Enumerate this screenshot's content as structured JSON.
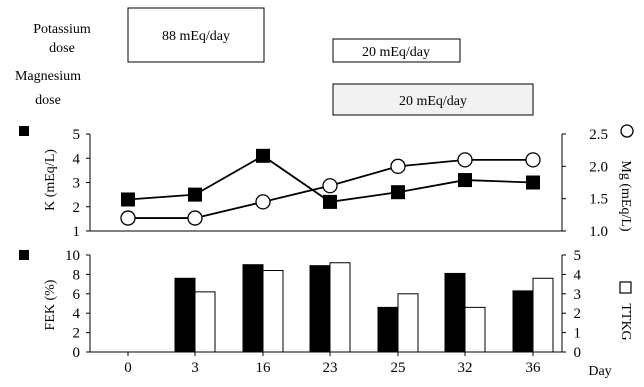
{
  "header": {
    "potassium_label_line1": "Potassium",
    "potassium_label_line2": "dose",
    "magnesium_label_line1": "Magnesium",
    "magnesium_label_line2": "dose",
    "dose_boxes": [
      {
        "label": "88 mEq/day",
        "fill": "#ffffff"
      },
      {
        "label": "20 mEq/day",
        "fill": "#ffffff"
      },
      {
        "label": "20 mEq/day",
        "fill": "#f2f2f2"
      }
    ]
  },
  "chart_data": [
    {
      "type": "line",
      "categories": [
        "0",
        "3",
        "16",
        "23",
        "25",
        "32",
        "36"
      ],
      "left_axis": {
        "label": "K (mEq/L)",
        "marker": "filled-square",
        "ylim": [
          1,
          5
        ],
        "ticks": [
          "1",
          "2",
          "3",
          "4",
          "5"
        ]
      },
      "right_axis": {
        "label": "Mg (mEq/L)",
        "marker": "open-circle",
        "ylim": [
          1.0,
          2.5
        ],
        "ticks": [
          "1.0",
          "1.5",
          "2.0",
          "2.5"
        ]
      },
      "series": [
        {
          "name": "K",
          "axis": "left",
          "marker": "filled-square",
          "values": [
            2.3,
            2.5,
            4.1,
            2.2,
            2.6,
            3.1,
            3.0
          ]
        },
        {
          "name": "Mg",
          "axis": "right",
          "marker": "open-circle",
          "values": [
            1.2,
            1.2,
            1.45,
            1.7,
            2.0,
            2.1,
            2.1
          ]
        }
      ]
    },
    {
      "type": "bar",
      "categories": [
        "0",
        "3",
        "16",
        "23",
        "25",
        "32",
        "36"
      ],
      "xlabel": "Day",
      "left_axis": {
        "label": "FEK (%)",
        "marker": "filled-square",
        "ylim": [
          0,
          10
        ],
        "ticks": [
          "0",
          "2",
          "4",
          "6",
          "8",
          "10"
        ]
      },
      "right_axis": {
        "label": "TTKG",
        "marker": "open-square",
        "ylim": [
          0,
          5
        ],
        "ticks": [
          "0",
          "1",
          "2",
          "3",
          "4",
          "5"
        ]
      },
      "series": [
        {
          "name": "FEK",
          "axis": "left",
          "color": "#000000",
          "values": [
            null,
            7.6,
            9.0,
            8.9,
            4.6,
            8.1,
            6.3
          ]
        },
        {
          "name": "TTKG",
          "axis": "right",
          "color": "#ffffff",
          "values": [
            null,
            3.1,
            4.2,
            4.6,
            3.0,
            2.3,
            3.8
          ]
        }
      ]
    }
  ]
}
